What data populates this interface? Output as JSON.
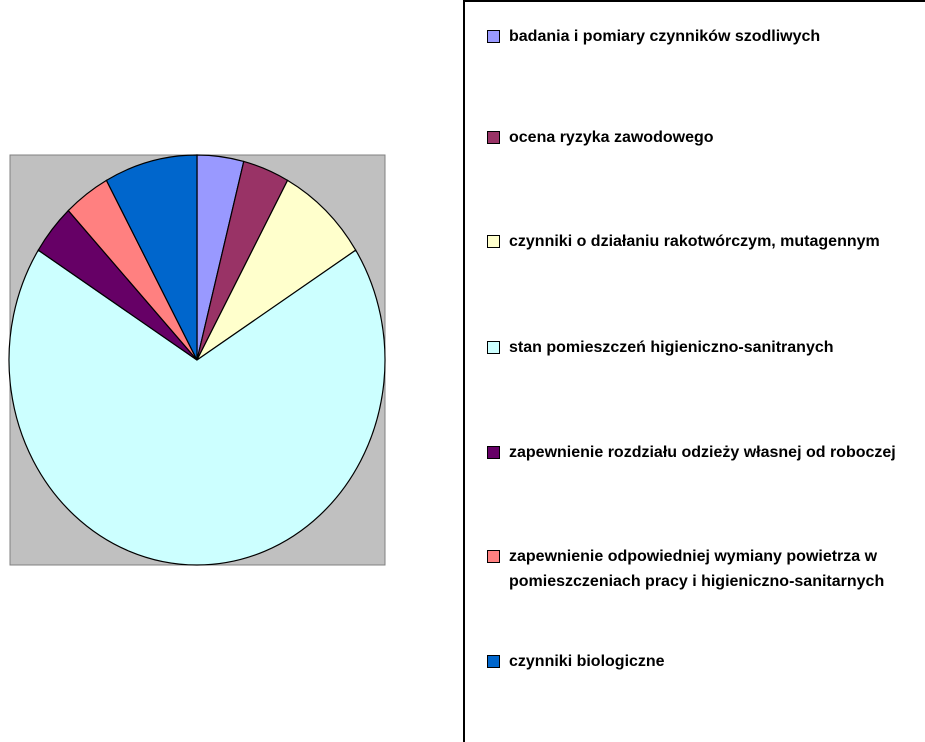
{
  "chart_data": {
    "type": "pie",
    "categories": [
      "badania i pomiary czynników szodliwych",
      "ocena ryzyka zawodowego",
      "czynniki o działaniu rakotwórczym, mutagennym",
      "stan pomieszczeń higieniczno-sanitranych",
      "zapewnienie rozdziału odzieży własnej od roboczej",
      "zapewnienie odpowiedniej wymiany powietrza w pomieszczeniach pracy i higieniczno-sanitarnych",
      "czynniki biologiczne"
    ],
    "values": [
      4,
      4,
      8,
      68,
      4,
      4,
      8
    ],
    "colors": [
      "#9999ff",
      "#993366",
      "#ffffcc",
      "#ccffff",
      "#660066",
      "#ff8080",
      "#0066cc"
    ],
    "legend": "right"
  }
}
